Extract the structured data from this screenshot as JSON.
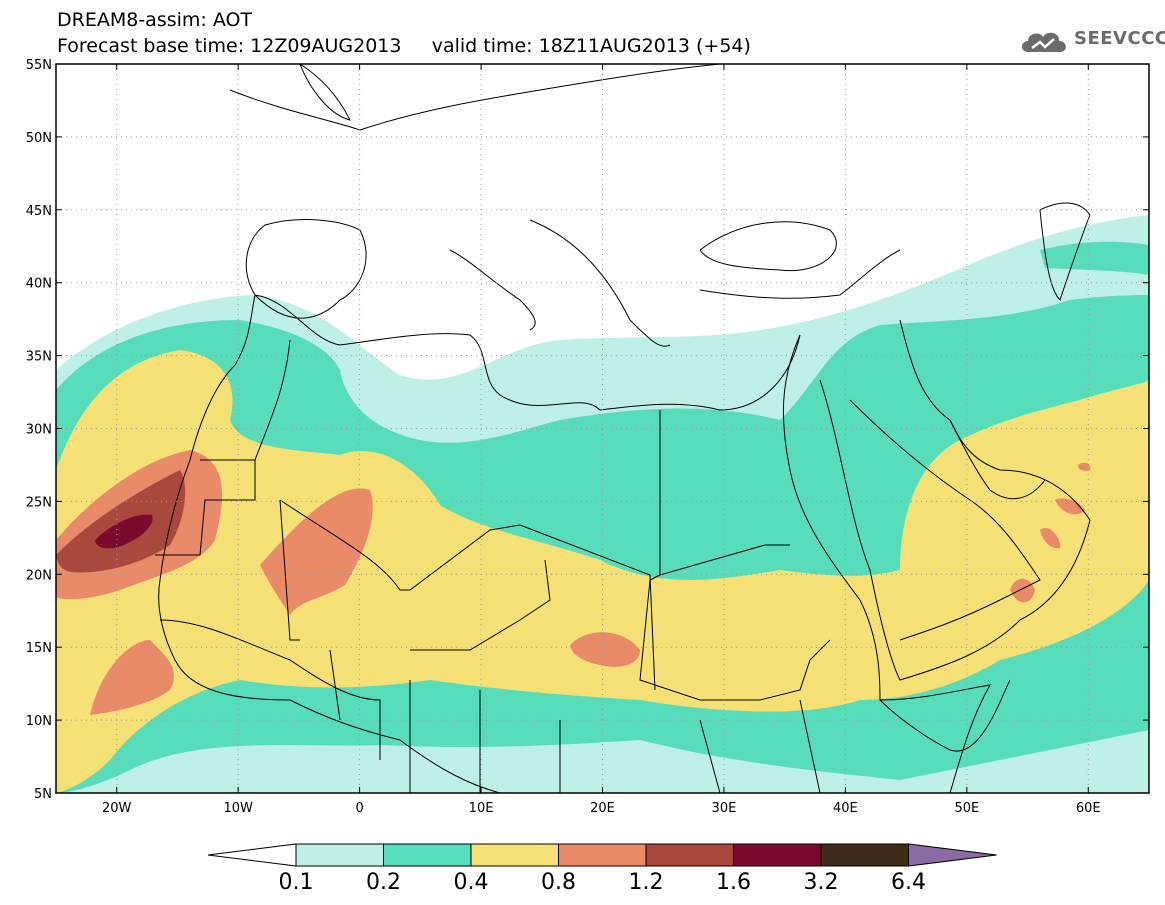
{
  "header": {
    "model_line": "DREAM8-assim: AOT",
    "base_time_label": "Forecast base time: 12Z09AUG2013",
    "valid_time_label": "valid time: 18Z11AUG2013 (+54)"
  },
  "logo": {
    "text": "SEEVCCC",
    "icon": "cloud-logo-icon",
    "color": "#6b6b6b"
  },
  "map": {
    "lon_range": [
      -25,
      65
    ],
    "lat_range": [
      5,
      55
    ],
    "lat_ticks": [
      {
        "value": 55,
        "label": "55N"
      },
      {
        "value": 50,
        "label": "50N"
      },
      {
        "value": 45,
        "label": "45N"
      },
      {
        "value": 40,
        "label": "40N"
      },
      {
        "value": 35,
        "label": "35N"
      },
      {
        "value": 30,
        "label": "30N"
      },
      {
        "value": 25,
        "label": "25N"
      },
      {
        "value": 20,
        "label": "20N"
      },
      {
        "value": 15,
        "label": "15N"
      },
      {
        "value": 10,
        "label": "10N"
      },
      {
        "value": 5,
        "label": "5N"
      }
    ],
    "lon_ticks": [
      {
        "value": -20,
        "label": "20W"
      },
      {
        "value": -10,
        "label": "10W"
      },
      {
        "value": 0,
        "label": "0"
      },
      {
        "value": 10,
        "label": "10E"
      },
      {
        "value": 20,
        "label": "20E"
      },
      {
        "value": 30,
        "label": "30E"
      },
      {
        "value": 40,
        "label": "40E"
      },
      {
        "value": 50,
        "label": "50E"
      },
      {
        "value": 60,
        "label": "60E"
      }
    ],
    "grid": true
  },
  "colorbar": {
    "colors": [
      "#ffffff",
      "#bff0e8",
      "#58ddbb",
      "#f6e177",
      "#e98a69",
      "#a9483c",
      "#7b0b2c",
      "#3e2a17",
      "#8b6aa5"
    ],
    "levels": [
      "0.1",
      "0.2",
      "0.4",
      "0.8",
      "1.2",
      "1.6",
      "3.2",
      "6.4"
    ]
  }
}
